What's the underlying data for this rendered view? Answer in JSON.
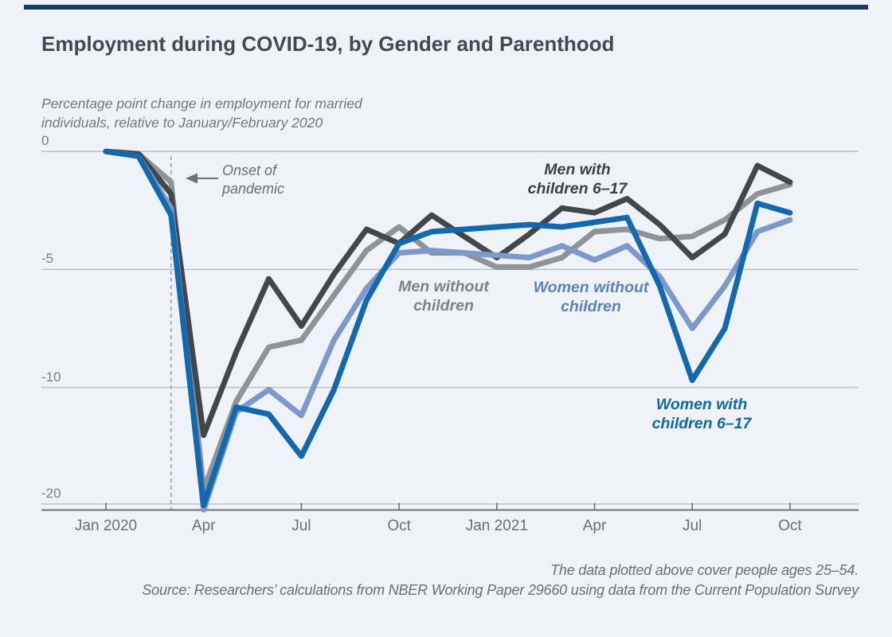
{
  "page": {
    "title": "Employment during COVID-19, by Gender and Parenthood",
    "subtitle_line1": "Percentage point change in employment for married",
    "subtitle_line2": "individuals, relative to January/February 2020",
    "footnote": "The data plotted above cover people ages 25–54.",
    "source": "Source: Researchers’ calculations from NBER Working Paper 29660 using data from the Current Population Survey"
  },
  "colors": {
    "background": "#eff3f8",
    "top_bar": "#1b3a5f",
    "title_text": "#45494f",
    "muted_text": "#6b6f75",
    "gridline": "#bcc1c7",
    "axis_line": "#6c7076",
    "dashed_line": "#9ba0a6",
    "men_with_children": "#43474c",
    "men_without_children": "#8f9297",
    "women_without_children": "#7d98ca",
    "women_with_children": "#1269b0"
  },
  "chart_data": {
    "type": "line",
    "title": "Employment during COVID-19, by Gender and Parenthood",
    "ylabel": "Percentage point change in employment for married individuals, relative to January/February 2020",
    "x": [
      "Jan 2020",
      "Feb 2020",
      "Mar 2020",
      "Apr 2020",
      "May 2020",
      "Jun 2020",
      "Jul 2020",
      "Aug 2020",
      "Sep 2020",
      "Oct 2020",
      "Nov 2020",
      "Dec 2020",
      "Jan 2021",
      "Feb 2021",
      "Mar 2021",
      "Apr 2021",
      "May 2021",
      "Jun 2021",
      "Jul 2021",
      "Aug 2021",
      "Sep 2021",
      "Oct 2021"
    ],
    "x_tick_labels": [
      "Jan 2020",
      "Apr",
      "Jul",
      "Oct",
      "Jan 2021",
      "Apr",
      "Jul",
      "Oct"
    ],
    "x_tick_month_indices": [
      0,
      3,
      6,
      9,
      12,
      15,
      18,
      21
    ],
    "y_tick_labels": [
      "0",
      "-5",
      "-10",
      "-20"
    ],
    "y_tick_values": [
      0,
      -5,
      -10,
      -20
    ],
    "ylim": [
      -20.6,
      0.5
    ],
    "grid": "horizontal-only",
    "axis_note": "y axis drawn with equal spacing between 0,-5,-10,-20 (compressed scale below -10)",
    "legend_position": "labels drawn inline next to lines",
    "series": [
      {
        "name": "Men with children 6–17",
        "label_lines": [
          "Men with",
          "children 6–17"
        ],
        "color": "#43474c",
        "label_color": "#3c4046",
        "values": [
          0,
          -0.1,
          -1.8,
          -14.1,
          -8.5,
          -5.4,
          -7.4,
          -5.2,
          -3.3,
          -3.9,
          -2.7,
          -3.6,
          -4.5,
          -3.5,
          -2.4,
          -2.6,
          -2.0,
          -3.1,
          -4.5,
          -3.5,
          -0.6,
          -1.3
        ]
      },
      {
        "name": "Men without children",
        "label_lines": [
          "Men without",
          "children"
        ],
        "color": "#8f9297",
        "label_color": "#7e8288",
        "values": [
          0,
          -0.1,
          -1.3,
          -18.8,
          -11.2,
          -8.3,
          -8.0,
          -6.1,
          -4.2,
          -3.2,
          -4.3,
          -4.3,
          -4.9,
          -4.9,
          -4.5,
          -3.4,
          -3.3,
          -3.7,
          -3.6,
          -2.9,
          -1.8,
          -1.4
        ]
      },
      {
        "name": "Women without children",
        "label_lines": [
          "Women without",
          "children"
        ],
        "color": "#7d98ca",
        "label_color": "#5d81c0",
        "values": [
          0,
          -0.2,
          -2.4,
          -20.5,
          -12.1,
          -10.2,
          -12.4,
          -8.0,
          -5.8,
          -4.3,
          -4.2,
          -4.3,
          -4.4,
          -4.5,
          -4.0,
          -4.6,
          -4.0,
          -5.3,
          -7.5,
          -5.7,
          -3.4,
          -2.9
        ]
      },
      {
        "name": "Women with children 6–17",
        "label_lines": [
          "Women with",
          "children 6–17"
        ],
        "color": "#1269b0",
        "label_color": "#0f67ae",
        "values": [
          0,
          -0.2,
          -2.7,
          -20.1,
          -11.7,
          -12.3,
          -15.9,
          -10.2,
          -6.3,
          -3.9,
          -3.4,
          -3.3,
          -3.2,
          -3.1,
          -3.2,
          -3.0,
          -2.8,
          -5.7,
          -9.7,
          -7.5,
          -2.2,
          -2.6
        ]
      }
    ],
    "annotation": {
      "lines": [
        "Onset of",
        "pandemic"
      ],
      "points_to_month_index": 2
    }
  }
}
